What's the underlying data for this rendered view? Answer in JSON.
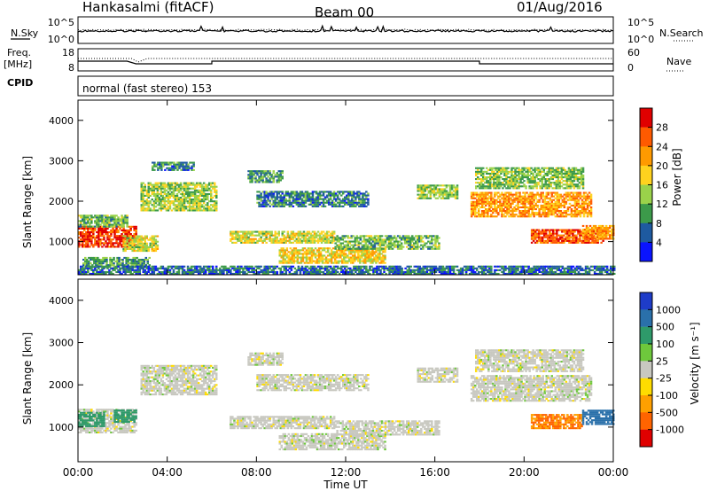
{
  "header": {
    "station": "Hankasalmi (fitACF)",
    "beam": "Beam 00",
    "date": "01/Aug/2016"
  },
  "top_panels": {
    "nsky_label": "N.Sky",
    "nsearch_label": "N.Search",
    "nsky_ticks": [
      "10^5",
      "10^0"
    ],
    "nsearch_ticks": [
      "10^5",
      "10^0"
    ],
    "freq_label_1": "Freq.",
    "freq_label_2": "[MHz]",
    "freq_ticks": [
      "18",
      "8"
    ],
    "nave_label": "Nave",
    "nave_ticks": [
      "60",
      "0"
    ],
    "cpid_label": "CPID",
    "cpid_text": "normal (fast stereo) 153"
  },
  "colorbars": {
    "power": {
      "label": "Power [dB]",
      "ticks": [
        "28",
        "24",
        "20",
        "16",
        "12",
        "8",
        "4"
      ],
      "colors": [
        "#e00000",
        "#ff5a00",
        "#ff9a00",
        "#ffd21e",
        "#9ad24a",
        "#3c9a4a",
        "#1e5aa0",
        "#0a14ff"
      ]
    },
    "velocity": {
      "label": "Velocity [m s⁻¹]",
      "ticks": [
        "1000",
        "500",
        "100",
        "25",
        "-25",
        "-100",
        "-500",
        "-1000"
      ],
      "colors": [
        "#1e3cc8",
        "#2a70aa",
        "#2e9a6a",
        "#6ec83c",
        "#c8c8c0",
        "#ffdc00",
        "#ffa000",
        "#ff6400",
        "#e00000"
      ]
    }
  },
  "chart_data": [
    {
      "type": "heatmap",
      "name": "power",
      "ylabel": "Slant Range [km]",
      "xlabel": "Time UT",
      "xlim": [
        0,
        24
      ],
      "ylim": [
        180,
        4500
      ],
      "yticks": [
        "4000",
        "3000",
        "2000",
        "1000"
      ],
      "xticks": [
        "00:00",
        "04:00",
        "08:00",
        "12:00",
        "16:00",
        "20:00",
        "00:00"
      ],
      "bands": [
        {
          "t0": 0.0,
          "t1": 2.6,
          "r0": 850,
          "r1": 1350,
          "level": 26
        },
        {
          "t0": 2.0,
          "t1": 3.6,
          "r0": 750,
          "r1": 1150,
          "level": 14
        },
        {
          "t0": 0.0,
          "t1": 2.2,
          "r0": 1350,
          "r1": 1650,
          "level": 10
        },
        {
          "t0": 0.2,
          "t1": 3.2,
          "r0": 350,
          "r1": 600,
          "level": 8
        },
        {
          "t0": 2.8,
          "t1": 6.2,
          "r0": 1750,
          "r1": 2450,
          "level": 12
        },
        {
          "t0": 3.3,
          "t1": 5.2,
          "r0": 2750,
          "r1": 2950,
          "level": 6
        },
        {
          "t0": 7.6,
          "t1": 9.2,
          "r0": 2450,
          "r1": 2750,
          "level": 8
        },
        {
          "t0": 8.0,
          "t1": 13.0,
          "r0": 1850,
          "r1": 2250,
          "level": 6
        },
        {
          "t0": 6.8,
          "t1": 11.5,
          "r0": 950,
          "r1": 1250,
          "level": 14
        },
        {
          "t0": 9.0,
          "t1": 13.8,
          "r0": 450,
          "r1": 850,
          "level": 16
        },
        {
          "t0": 11.5,
          "t1": 16.2,
          "r0": 800,
          "r1": 1150,
          "level": 10
        },
        {
          "t0": 15.2,
          "t1": 17.0,
          "r0": 2050,
          "r1": 2400,
          "level": 12
        },
        {
          "t0": 17.6,
          "t1": 23.0,
          "r0": 1600,
          "r1": 2200,
          "level": 20
        },
        {
          "t0": 17.8,
          "t1": 22.6,
          "r0": 2300,
          "r1": 2800,
          "level": 11
        },
        {
          "t0": 20.3,
          "t1": 23.6,
          "r0": 950,
          "r1": 1300,
          "level": 24
        },
        {
          "t0": 22.6,
          "t1": 24.0,
          "r0": 1050,
          "r1": 1400,
          "level": 20
        },
        {
          "t0": 0.0,
          "t1": 24.0,
          "r0": 180,
          "r1": 380,
          "level": 5
        }
      ]
    },
    {
      "type": "heatmap",
      "name": "velocity",
      "ylabel": "Slant Range [km]",
      "xlabel": "Time UT",
      "xlim": [
        0,
        24
      ],
      "ylim": [
        180,
        4500
      ],
      "yticks": [
        "4000",
        "3000",
        "2000",
        "1000"
      ],
      "xticks": [
        "00:00",
        "04:00",
        "08:00",
        "12:00",
        "16:00",
        "20:00",
        "00:00"
      ],
      "bands": [
        {
          "t0": 0.0,
          "t1": 2.6,
          "r0": 850,
          "r1": 1400,
          "v": 0
        },
        {
          "t0": 0.0,
          "t1": 1.2,
          "r0": 1000,
          "r1": 1350,
          "v": 150
        },
        {
          "t0": 1.6,
          "t1": 2.6,
          "r0": 1100,
          "r1": 1400,
          "v": 150
        },
        {
          "t0": 2.8,
          "t1": 6.2,
          "r0": 1750,
          "r1": 2450,
          "v": 0
        },
        {
          "t0": 7.6,
          "t1": 9.2,
          "r0": 2450,
          "r1": 2750,
          "v": 0
        },
        {
          "t0": 8.0,
          "t1": 13.0,
          "r0": 1850,
          "r1": 2250,
          "v": 0
        },
        {
          "t0": 6.8,
          "t1": 11.5,
          "r0": 950,
          "r1": 1250,
          "v": 0
        },
        {
          "t0": 9.0,
          "t1": 13.8,
          "r0": 450,
          "r1": 850,
          "v": 0
        },
        {
          "t0": 11.5,
          "t1": 16.2,
          "r0": 800,
          "r1": 1150,
          "v": 0
        },
        {
          "t0": 15.2,
          "t1": 17.0,
          "r0": 2050,
          "r1": 2400,
          "v": 0
        },
        {
          "t0": 17.6,
          "t1": 23.0,
          "r0": 1600,
          "r1": 2200,
          "v": 0
        },
        {
          "t0": 17.8,
          "t1": 22.6,
          "r0": 2300,
          "r1": 2800,
          "v": 0
        },
        {
          "t0": 20.3,
          "t1": 22.6,
          "r0": 950,
          "r1": 1300,
          "v": -300
        },
        {
          "t0": 22.6,
          "t1": 24.0,
          "r0": 1050,
          "r1": 1400,
          "v": 600
        }
      ]
    }
  ]
}
